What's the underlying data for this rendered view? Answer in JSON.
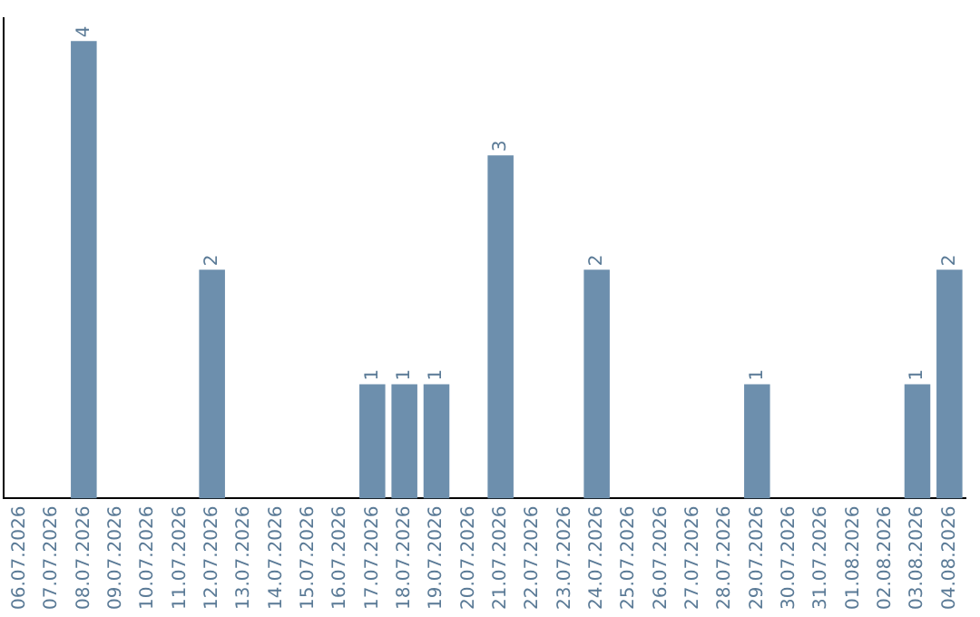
{
  "chart_data": {
    "type": "bar",
    "categories": [
      "06.07.2026",
      "07.07.2026",
      "08.07.2026",
      "09.07.2026",
      "10.07.2026",
      "11.07.2026",
      "12.07.2026",
      "13.07.2026",
      "14.07.2026",
      "15.07.2026",
      "16.07.2026",
      "17.07.2026",
      "18.07.2026",
      "19.07.2026",
      "20.07.2026",
      "21.07.2026",
      "22.07.2026",
      "23.07.2026",
      "24.07.2026",
      "25.07.2026",
      "26.07.2026",
      "27.07.2026",
      "28.07.2026",
      "29.07.2026",
      "30.07.2026",
      "31.07.2026",
      "01.08.2026",
      "02.08.2026",
      "03.08.2026",
      "04.08.2026"
    ],
    "values": [
      0,
      0,
      4,
      0,
      0,
      0,
      2,
      0,
      0,
      0,
      0,
      1,
      1,
      1,
      0,
      3,
      0,
      0,
      2,
      0,
      0,
      0,
      0,
      1,
      0,
      0,
      0,
      0,
      1,
      2
    ],
    "value_labels": [
      null,
      null,
      "4",
      null,
      null,
      null,
      "2",
      null,
      null,
      null,
      null,
      "1",
      "1",
      "1",
      null,
      "3",
      null,
      null,
      "2",
      null,
      null,
      null,
      null,
      "1",
      null,
      null,
      null,
      null,
      "1",
      "2"
    ],
    "color": "#6d8fad",
    "ylim": [
      0,
      4.2
    ],
    "grid": false,
    "legend": false,
    "tick_labels": "x"
  }
}
